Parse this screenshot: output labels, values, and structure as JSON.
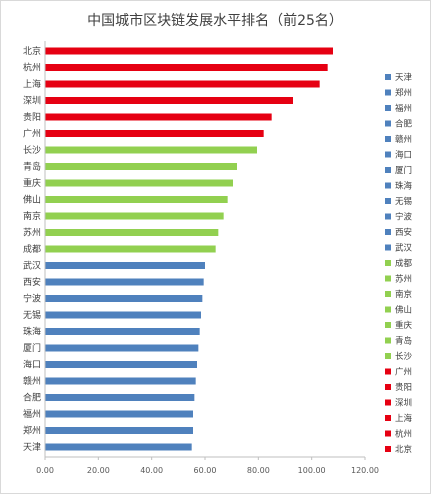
{
  "chart_data": {
    "type": "bar",
    "orientation": "horizontal",
    "title": "中国城市区块链发展水平排名（前25名）",
    "categories": [
      "北京",
      "杭州",
      "上海",
      "深圳",
      "贵阳",
      "广州",
      "长沙",
      "青岛",
      "重庆",
      "佛山",
      "南京",
      "苏州",
      "成都",
      "武汉",
      "西安",
      "宁波",
      "无锡",
      "珠海",
      "厦门",
      "海口",
      "赣州",
      "合肥",
      "福州",
      "郑州",
      "天津"
    ],
    "values": [
      108,
      106,
      103,
      93,
      85,
      82,
      79.5,
      72,
      70.5,
      68.5,
      67,
      65,
      64,
      60,
      59.5,
      59,
      58.5,
      58,
      57.5,
      57,
      56.5,
      56,
      55.5,
      55.5,
      55
    ],
    "group_colors": [
      "#e60012",
      "#e60012",
      "#e60012",
      "#e60012",
      "#e60012",
      "#e60012",
      "#92d050",
      "#92d050",
      "#92d050",
      "#92d050",
      "#92d050",
      "#92d050",
      "#92d050",
      "#4f81bd",
      "#4f81bd",
      "#4f81bd",
      "#4f81bd",
      "#4f81bd",
      "#4f81bd",
      "#4f81bd",
      "#4f81bd",
      "#4f81bd",
      "#4f81bd",
      "#4f81bd",
      "#4f81bd"
    ],
    "xlim": [
      0,
      120
    ],
    "x_ticks": [
      "0.00",
      "20.00",
      "40.00",
      "60.00",
      "80.00",
      "100.00",
      "120.00"
    ],
    "legend_position": "right",
    "legend": [
      "天津",
      "郑州",
      "福州",
      "合肥",
      "赣州",
      "海口",
      "厦门",
      "珠海",
      "无锡",
      "宁波",
      "西安",
      "武汉",
      "成都",
      "苏州",
      "南京",
      "佛山",
      "重庆",
      "青岛",
      "长沙",
      "广州",
      "贵阳",
      "深圳",
      "上海",
      "杭州",
      "北京"
    ],
    "grid": false
  }
}
